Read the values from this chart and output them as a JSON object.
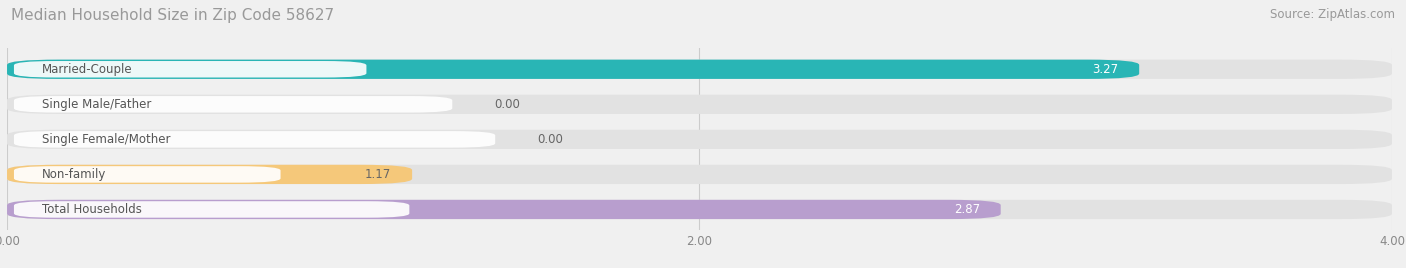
{
  "title": "Median Household Size in Zip Code 58627",
  "source": "Source: ZipAtlas.com",
  "categories": [
    "Married-Couple",
    "Single Male/Father",
    "Single Female/Mother",
    "Non-family",
    "Total Households"
  ],
  "values": [
    3.27,
    0.0,
    0.0,
    1.17,
    2.87
  ],
  "bar_colors": [
    "#29b5b5",
    "#a8b8e8",
    "#f0a0b8",
    "#f5c87a",
    "#b89ece"
  ],
  "value_label_colors": [
    "#ffffff",
    "#666666",
    "#666666",
    "#666666",
    "#ffffff"
  ],
  "xlim_min": 0,
  "xlim_max": 4.0,
  "xticks": [
    0.0,
    2.0,
    4.0
  ],
  "xtick_labels": [
    "0.00",
    "2.00",
    "4.00"
  ],
  "background_color": "#f0f0f0",
  "bar_bg_color": "#e2e2e2",
  "grid_color": "#cccccc",
  "label_box_color": "#ffffff",
  "label_text_color": "#555555",
  "title_color": "#999999",
  "source_color": "#999999",
  "title_fontsize": 11,
  "source_fontsize": 8.5,
  "bar_label_fontsize": 8.5,
  "value_fontsize": 8.5,
  "bar_height": 0.55,
  "bar_spacing": 1.0
}
